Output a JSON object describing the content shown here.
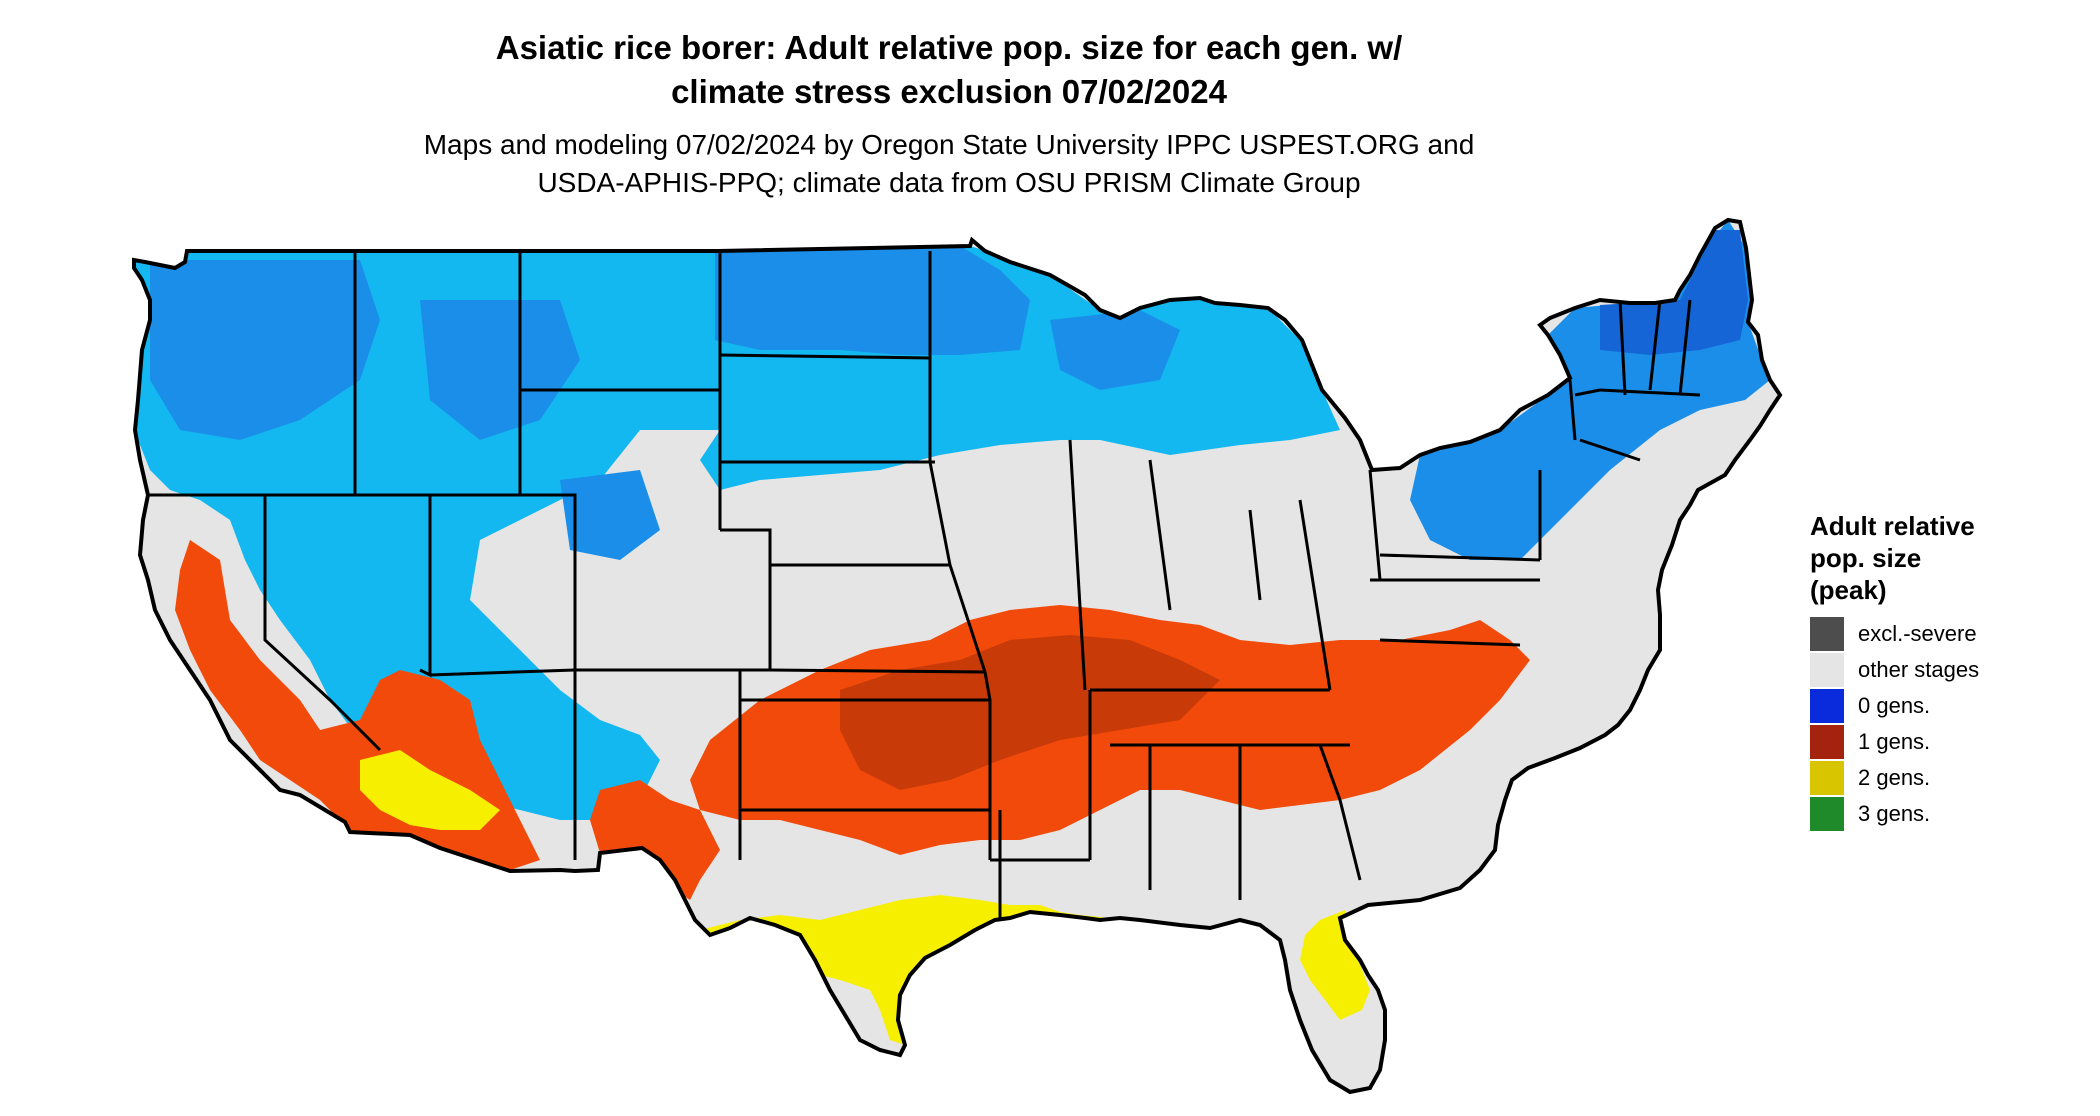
{
  "title": {
    "line1": "Asiatic rice borer: Adult relative pop. size for each gen. w/",
    "line2": "climate stress exclusion 07/02/2024"
  },
  "subtitle": {
    "line1": "Maps and modeling 07/02/2024 by Oregon State University IPPC USPEST.ORG and",
    "line2": "USDA-APHIS-PPQ; climate data from OSU PRISM Climate Group"
  },
  "legend": {
    "title_lines": [
      "Adult relative",
      "pop. size",
      "(peak)"
    ],
    "items": [
      {
        "label": "excl.-severe",
        "color": "#4d4d4d"
      },
      {
        "label": "other stages",
        "color": "#e5e5e5"
      },
      {
        "label": "0 gens.",
        "color": "#0a2bdb"
      },
      {
        "label": "1 gens.",
        "color": "#a3230f"
      },
      {
        "label": "2 gens.",
        "color": "#d9c400"
      },
      {
        "label": "3 gens.",
        "color": "#1f8a2a"
      }
    ]
  },
  "map_colors": {
    "land": "#e5e5e5",
    "cold_light": "#13b8f0",
    "cold_mid": "#1a8ee8",
    "cold_dark": "#1565d6",
    "warm_red": "#f24a0a",
    "warm_dark": "#c83a08",
    "yellow": "#f7ef00",
    "green": "#2fb52f",
    "border": "#000000"
  }
}
